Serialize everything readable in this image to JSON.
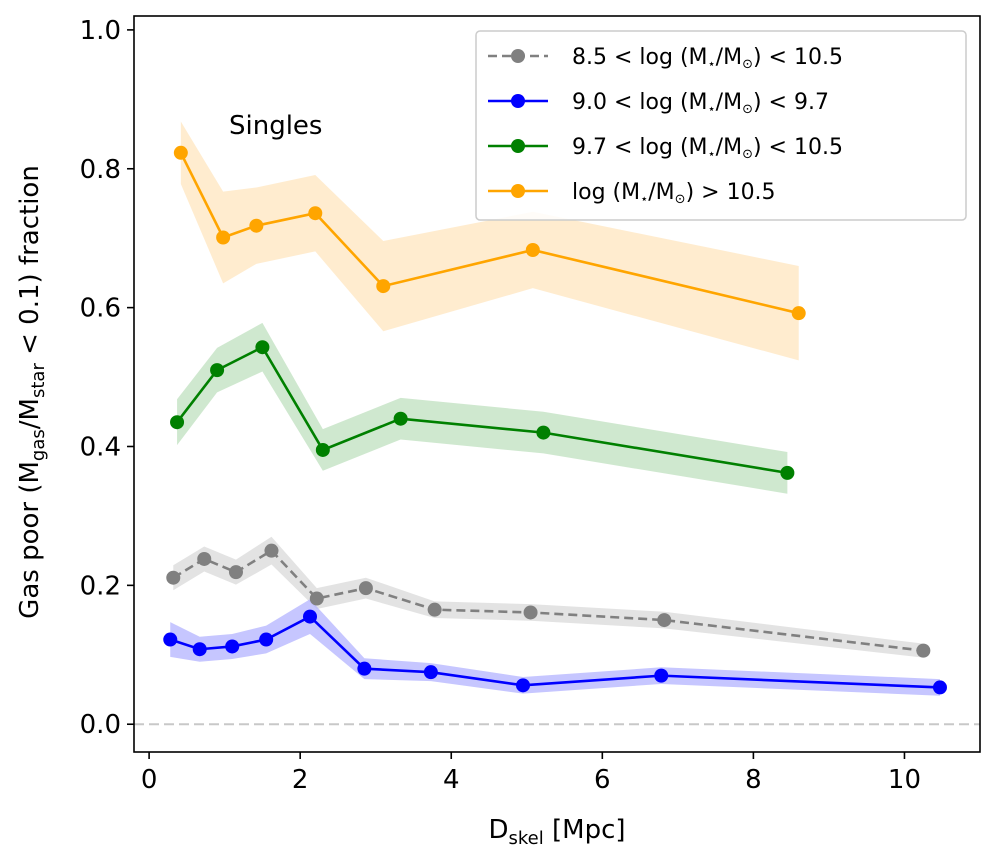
{
  "chart_data": {
    "type": "line",
    "title": "",
    "annotation": "Singles",
    "xlabel": {
      "main": "D",
      "sub": "skel",
      "tail": " [Mpc]"
    },
    "ylabel": {
      "p0": "Gas poor (M",
      "s0": "gas",
      "p1": "/M",
      "s1": "star",
      "p2": " < 0.1) fraction"
    },
    "xlim": [
      -0.2,
      11.0
    ],
    "ylim": [
      -0.04,
      1.02
    ],
    "xticks": [
      0,
      2,
      4,
      6,
      8,
      10
    ],
    "yticks": [
      0.0,
      0.2,
      0.4,
      0.6,
      0.8,
      1.0
    ],
    "xtick_labels": [
      "0",
      "2",
      "4",
      "6",
      "8",
      "10"
    ],
    "ytick_labels": [
      "0.0",
      "0.2",
      "0.4",
      "0.6",
      "0.8",
      "1.0"
    ],
    "grid": false,
    "legend_position": "top-right",
    "reference_line": {
      "y": 0.0,
      "style": "dashed",
      "color": "#c8c8c8"
    },
    "series": [
      {
        "name": "8.5 < log (M⋆/M☉) < 10.5",
        "legend_parts": [
          "8.5 < log (M",
          "⋆",
          "/M",
          "⊙",
          ") < 10.5"
        ],
        "color": "#808080",
        "band_color": "#d9d9d9",
        "dashed": true,
        "x": [
          0.32,
          0.73,
          1.15,
          1.62,
          2.22,
          2.87,
          3.78,
          5.05,
          6.82,
          10.25
        ],
        "y": [
          0.211,
          0.238,
          0.219,
          0.25,
          0.181,
          0.196,
          0.165,
          0.161,
          0.15,
          0.106
        ],
        "err": [
          0.018,
          0.018,
          0.018,
          0.02,
          0.015,
          0.015,
          0.012,
          0.012,
          0.012,
          0.01
        ]
      },
      {
        "name": "9.0 < log (M⋆/M☉) < 9.7",
        "legend_parts": [
          "9.0 < log (M",
          "⋆",
          "/M",
          "⊙",
          ") < 9.7"
        ],
        "color": "#0000ff",
        "band_color": "#b3b3ff",
        "dashed": false,
        "x": [
          0.28,
          0.67,
          1.1,
          1.55,
          2.13,
          2.85,
          3.73,
          4.95,
          6.78,
          10.47
        ],
        "y": [
          0.122,
          0.108,
          0.112,
          0.122,
          0.155,
          0.08,
          0.075,
          0.056,
          0.07,
          0.053
        ],
        "err": [
          0.025,
          0.018,
          0.018,
          0.02,
          0.025,
          0.015,
          0.013,
          0.012,
          0.012,
          0.012
        ]
      },
      {
        "name": "9.7 < log (M⋆/M☉) < 10.5",
        "legend_parts": [
          "9.7 < log (M",
          "⋆",
          "/M",
          "⊙",
          ") < 10.5"
        ],
        "color": "#008000",
        "band_color": "#bfe0bf",
        "dashed": false,
        "x": [
          0.37,
          0.9,
          1.5,
          2.3,
          3.33,
          5.22,
          8.45
        ],
        "y": [
          0.435,
          0.51,
          0.543,
          0.395,
          0.44,
          0.42,
          0.362
        ],
        "err": [
          0.033,
          0.032,
          0.035,
          0.03,
          0.03,
          0.03,
          0.03
        ]
      },
      {
        "name": "log (M⋆/M☉) > 10.5",
        "legend_parts": [
          "log (M",
          "⋆",
          "/M",
          "⊙",
          ") > 10.5"
        ],
        "color": "#ffa500",
        "band_color": "#ffe6bf",
        "dashed": false,
        "x": [
          0.42,
          0.98,
          1.42,
          2.2,
          3.1,
          5.08,
          8.6
        ],
        "y": [
          0.823,
          0.701,
          0.718,
          0.736,
          0.631,
          0.683,
          0.592
        ],
        "err": [
          0.045,
          0.066,
          0.055,
          0.055,
          0.065,
          0.055,
          0.068
        ]
      }
    ]
  }
}
